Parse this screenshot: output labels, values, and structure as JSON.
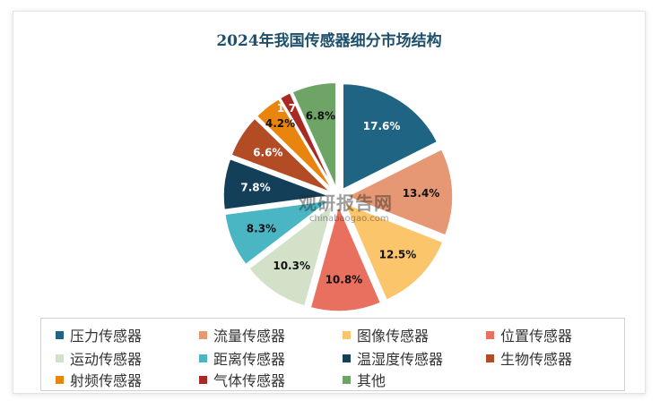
{
  "chart_data": {
    "type": "pie",
    "title": "2024年我国传感器细分市场结构",
    "slices": [
      {
        "name": "压力传感器",
        "value": 17.6,
        "label": "17.6%",
        "color": "#1f6482"
      },
      {
        "name": "流量传感器",
        "value": 13.4,
        "label": "13.4%",
        "color": "#e59873"
      },
      {
        "name": "图像传感器",
        "value": 12.5,
        "label": "12.5%",
        "color": "#fbc56c"
      },
      {
        "name": "位置传感器",
        "value": 10.8,
        "label": "10.8%",
        "color": "#e96f5f"
      },
      {
        "name": "运动传感器",
        "value": 10.3,
        "label": "10.3%",
        "color": "#d3e1c9"
      },
      {
        "name": "距离传感器",
        "value": 8.3,
        "label": "8.3%",
        "color": "#4ab6c4"
      },
      {
        "name": "温湿度传感器",
        "value": 7.8,
        "label": "7.8%",
        "color": "#133f59"
      },
      {
        "name": "生物传感器",
        "value": 6.6,
        "label": "6.6%",
        "color": "#b34b25"
      },
      {
        "name": "射频传感器",
        "value": 4.2,
        "label": "4.2%",
        "color": "#e9850e"
      },
      {
        "name": "气体传感器",
        "value": 1.7,
        "label": "1.7%",
        "color": "#a82a22"
      },
      {
        "name": "其他",
        "value": 6.8,
        "label": "6.8%",
        "color": "#6fa467"
      }
    ],
    "legend_position": "bottom"
  },
  "watermark": {
    "main": "观研报告网",
    "sub": "chinabaogao.com"
  }
}
